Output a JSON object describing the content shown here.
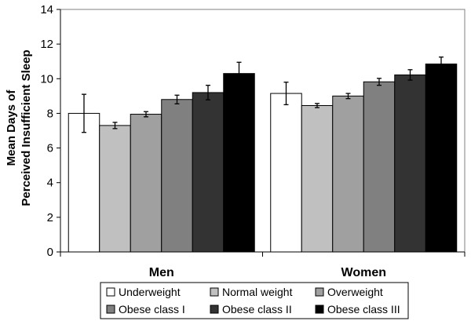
{
  "chart_data": {
    "type": "bar",
    "title": "",
    "xlabel": "",
    "ylabel_lines": [
      "Mean Days of",
      "Perceived Insufficient Sleep"
    ],
    "ylim": [
      0,
      14
    ],
    "yticks": [
      0,
      2,
      4,
      6,
      8,
      10,
      12,
      14
    ],
    "grid": false,
    "legend_position": "bottom",
    "categories": [
      "Men",
      "Women"
    ],
    "series": [
      {
        "name": "Underweight",
        "color": "#ffffff",
        "values": [
          8.0,
          9.15
        ],
        "errors": [
          1.1,
          0.65
        ]
      },
      {
        "name": "Normal weight",
        "color": "#c0c0c0",
        "values": [
          7.3,
          8.45
        ],
        "errors": [
          0.18,
          0.12
        ]
      },
      {
        "name": "Overweight",
        "color": "#a0a0a0",
        "values": [
          7.95,
          9.0
        ],
        "errors": [
          0.15,
          0.15
        ]
      },
      {
        "name": "Obese class I",
        "color": "#808080",
        "values": [
          8.8,
          9.82
        ],
        "errors": [
          0.25,
          0.2
        ]
      },
      {
        "name": "Obese class II",
        "color": "#333333",
        "values": [
          9.2,
          10.22
        ],
        "errors": [
          0.42,
          0.3
        ]
      },
      {
        "name": "Obese class III",
        "color": "#000000",
        "values": [
          10.3,
          10.85
        ],
        "errors": [
          0.65,
          0.4
        ]
      }
    ]
  }
}
